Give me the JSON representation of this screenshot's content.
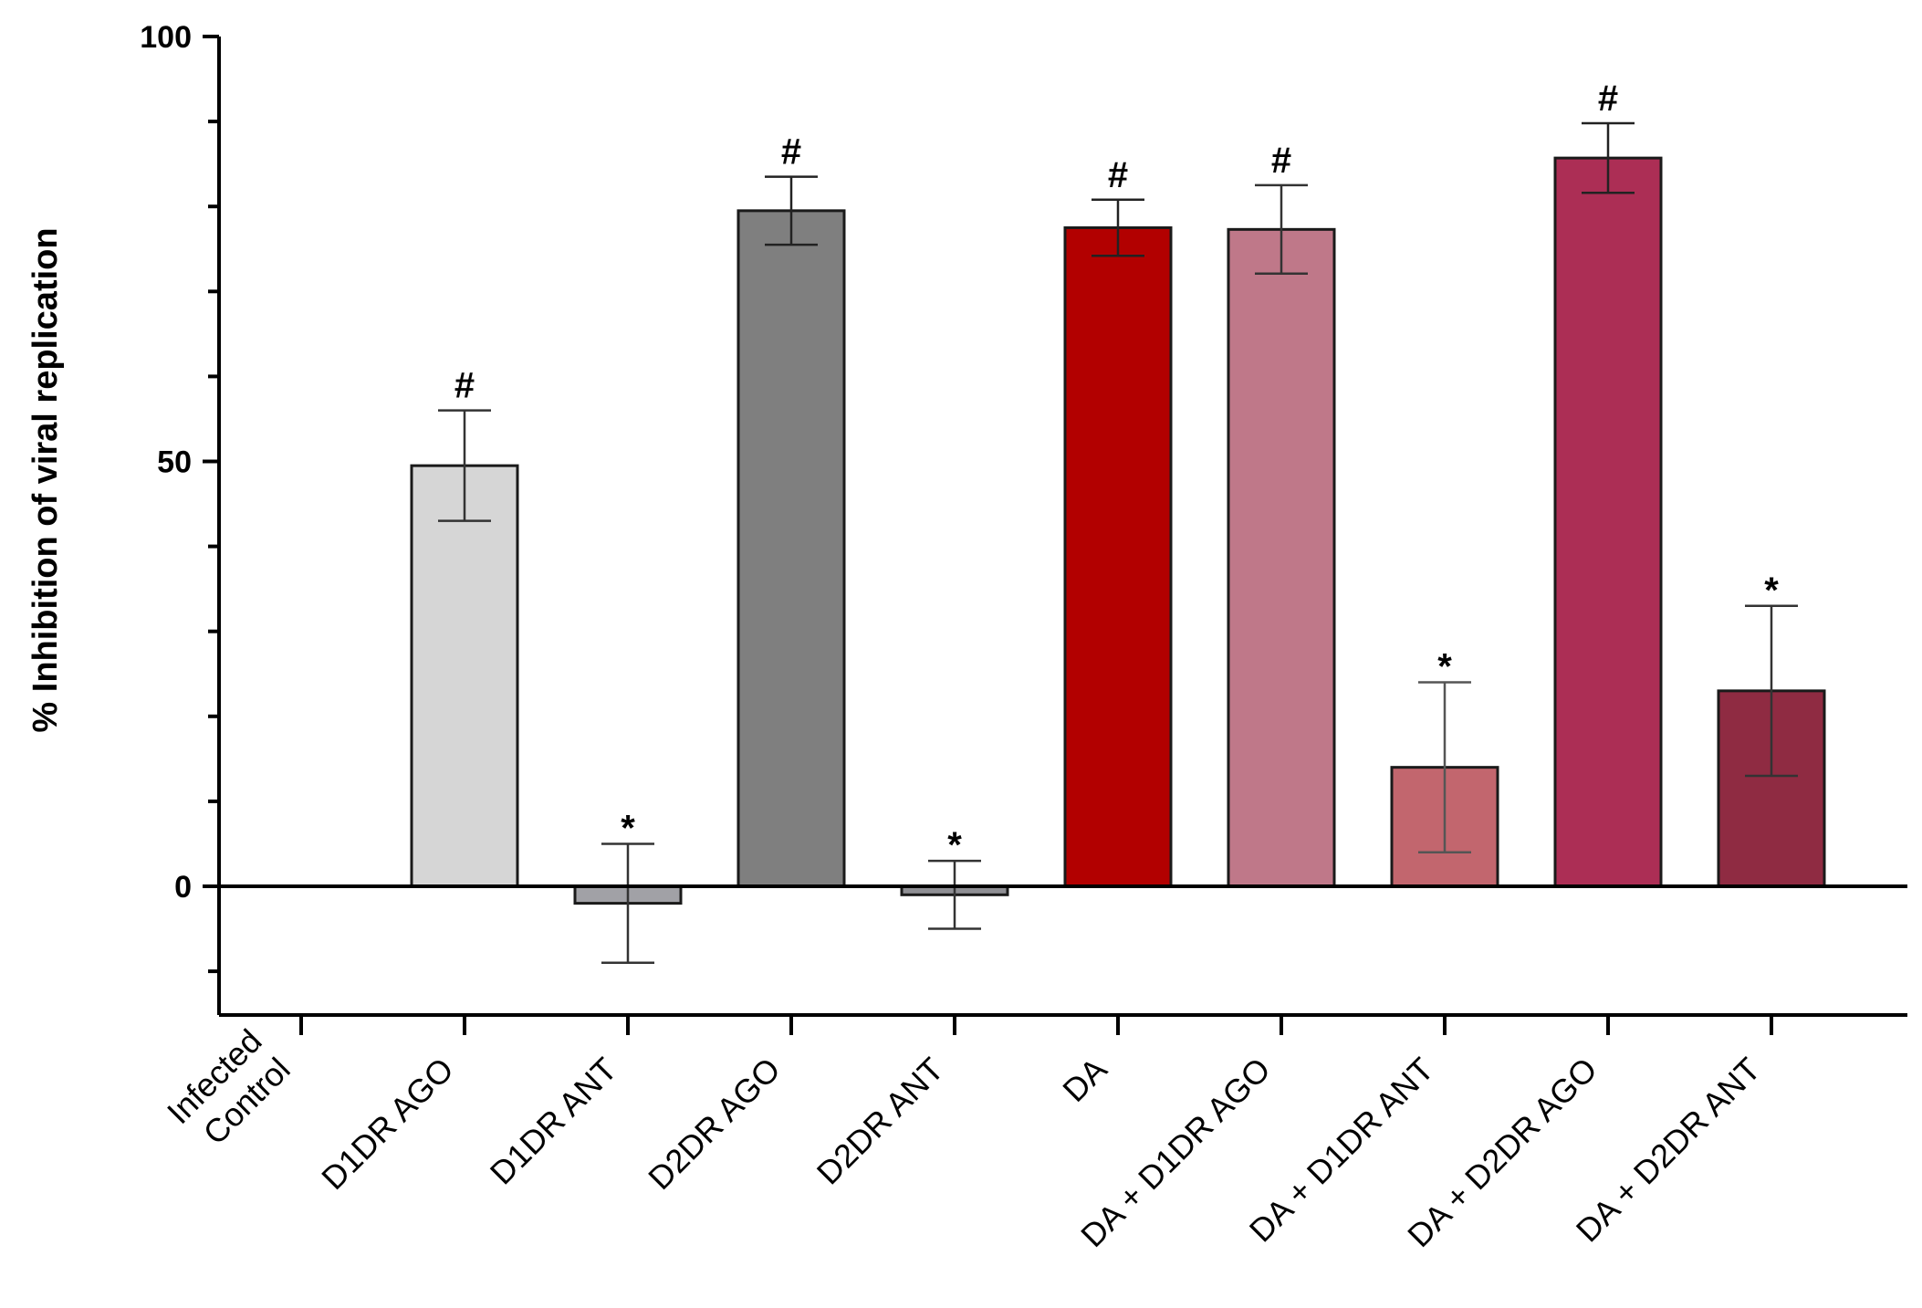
{
  "chart_data": {
    "type": "bar",
    "title": "",
    "xlabel": "",
    "ylabel": "% Inhibition of viral replication",
    "ylim": [
      -15,
      100
    ],
    "yticks": [
      0,
      50,
      100
    ],
    "grid": false,
    "legend": "none",
    "categories": [
      [
        "Infected",
        "Control"
      ],
      [
        "D1DR AGO"
      ],
      [
        "D1DR ANT"
      ],
      [
        "D2DR AGO"
      ],
      [
        "D2DR ANT"
      ],
      [
        "DA"
      ],
      [
        "DA + D1DR AGO"
      ],
      [
        "DA + D1DR ANT"
      ],
      [
        "DA + D2DR AGO"
      ],
      [
        "DA + D2DR ANT"
      ]
    ],
    "values": [
      null,
      49.5,
      -2,
      79.5,
      -1,
      77.5,
      77.3,
      14,
      85.7,
      23
    ],
    "errors": [
      null,
      6.5,
      7,
      4,
      4,
      3.3,
      5.2,
      10,
      4.1,
      10
    ],
    "colors": [
      "#ffffff",
      "#d6d6d6",
      "#a1a1a6",
      "#7f7f7f",
      "#8f8f94",
      "#b20000",
      "#bf7889",
      "#c2666e",
      "#ac2e55",
      "#8f2b42"
    ],
    "error_colors": [
      "#000000",
      "#333333",
      "#333333",
      "#222222",
      "#333333",
      "#222222",
      "#333333",
      "#555555",
      "#222222",
      "#333333"
    ],
    "annotations": [
      "",
      "#",
      "*",
      "#",
      "*",
      "#",
      "#",
      "*",
      "#",
      "*"
    ]
  }
}
